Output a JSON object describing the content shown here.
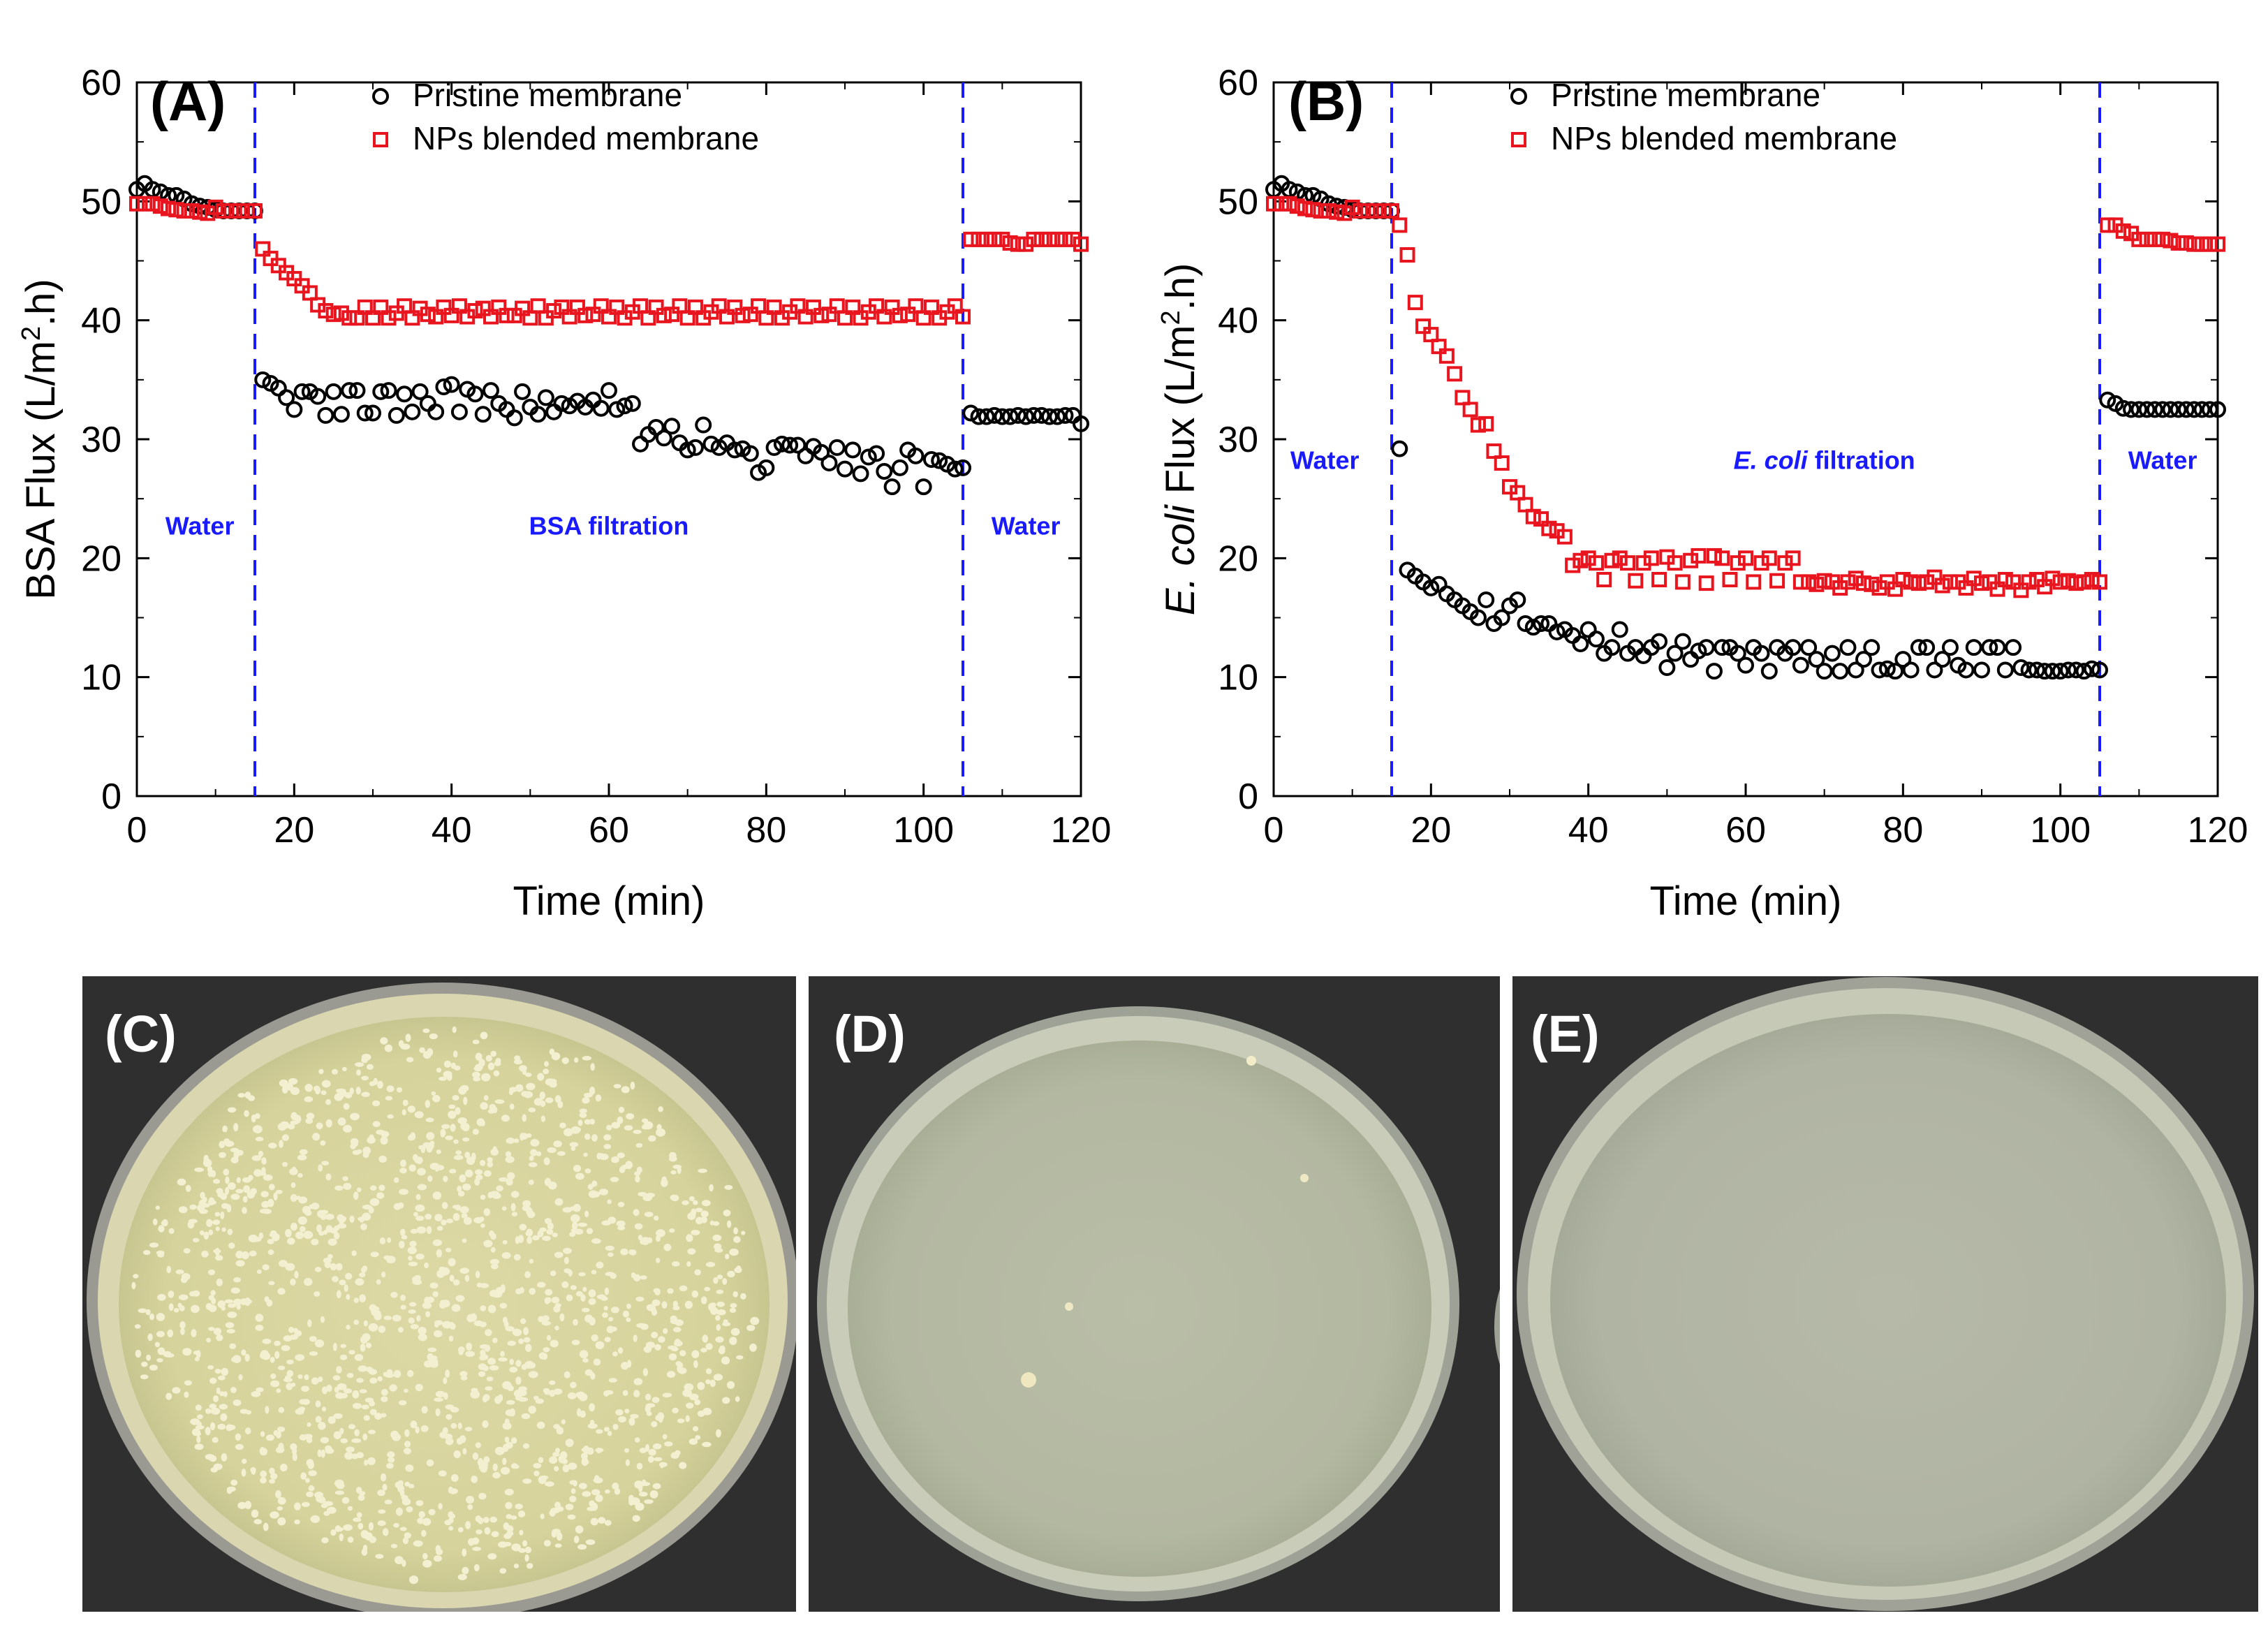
{
  "chart_data": [
    {
      "panel": "(A)",
      "type": "scatter",
      "xlabel": "Time (min)",
      "ylabel_parts": [
        "BSA Flux (L/m",
        "2",
        ".h)"
      ],
      "xlim": [
        0,
        120
      ],
      "ylim": [
        0,
        60
      ],
      "xticks": [
        0,
        20,
        40,
        60,
        80,
        100,
        120
      ],
      "yticks": [
        0,
        10,
        20,
        30,
        40,
        50,
        60
      ],
      "vlines": [
        15,
        105
      ],
      "vline_color": "#1a1aff",
      "regions": [
        {
          "text": "Water",
          "x": 8,
          "y": 22
        },
        {
          "text": "BSA filtration",
          "x": 60,
          "y": 22
        },
        {
          "text": "Water",
          "x": 113,
          "y": 22
        }
      ],
      "legend_position": "top-center",
      "series": [
        {
          "name": "Pristine membrane",
          "marker": "circle",
          "color": "#000000",
          "x": [
            0,
            1,
            2,
            3,
            4,
            5,
            6,
            7,
            8,
            9,
            10,
            11,
            12,
            13,
            14,
            15,
            16,
            17,
            18,
            19,
            20,
            21,
            22,
            23,
            24,
            25,
            26,
            27,
            28,
            29,
            30,
            31,
            32,
            33,
            34,
            35,
            36,
            37,
            38,
            39,
            40,
            41,
            42,
            43,
            44,
            45,
            46,
            47,
            48,
            49,
            50,
            51,
            52,
            53,
            54,
            55,
            56,
            57,
            58,
            59,
            60,
            61,
            62,
            63,
            64,
            65,
            66,
            67,
            68,
            69,
            70,
            71,
            72,
            73,
            74,
            75,
            76,
            77,
            78,
            79,
            80,
            81,
            82,
            83,
            84,
            85,
            86,
            87,
            88,
            89,
            90,
            91,
            92,
            93,
            94,
            95,
            96,
            97,
            98,
            99,
            100,
            101,
            102,
            103,
            104,
            105,
            106,
            107,
            108,
            109,
            110,
            111,
            112,
            113,
            114,
            115,
            116,
            117,
            118,
            119,
            120
          ],
          "y": [
            51.0,
            51.5,
            51.0,
            50.8,
            50.5,
            50.5,
            50.2,
            49.8,
            49.6,
            49.5,
            49.3,
            49.2,
            49.2,
            49.2,
            49.2,
            49.2,
            35.0,
            34.7,
            34.3,
            33.5,
            32.5,
            34.0,
            34.0,
            33.6,
            32.0,
            34.0,
            32.1,
            34.1,
            34.1,
            32.2,
            32.2,
            34.0,
            34.1,
            32.0,
            33.8,
            32.3,
            34.0,
            33.0,
            32.3,
            34.4,
            34.6,
            32.3,
            34.2,
            33.8,
            32.1,
            34.1,
            33.0,
            32.5,
            31.8,
            34.0,
            32.7,
            32.1,
            33.5,
            32.3,
            33.0,
            32.8,
            33.2,
            32.7,
            33.3,
            32.6,
            34.1,
            32.5,
            32.8,
            33.0,
            29.6,
            30.4,
            31.0,
            30.1,
            31.1,
            29.7,
            29.1,
            29.3,
            31.2,
            29.6,
            29.3,
            29.7,
            29.1,
            29.2,
            28.8,
            27.2,
            27.6,
            29.3,
            29.6,
            29.5,
            29.5,
            28.6,
            29.4,
            28.9,
            28.0,
            29.3,
            27.5,
            29.1,
            27.1,
            28.5,
            28.8,
            27.3,
            26.0,
            27.6,
            29.1,
            28.6,
            26.0,
            28.3,
            28.2,
            27.9,
            27.5,
            27.6,
            32.2,
            31.9,
            31.9,
            32.0,
            31.9,
            31.9,
            32.0,
            31.9,
            32.0,
            32.0,
            31.9,
            31.9,
            32.0,
            32.0,
            31.3
          ]
        },
        {
          "name": "NPs blended membrane",
          "marker": "square",
          "color": "#e8141e",
          "x": [
            0,
            1,
            2,
            3,
            4,
            5,
            6,
            7,
            8,
            9,
            10,
            11,
            12,
            13,
            14,
            15,
            16,
            17,
            18,
            19,
            20,
            21,
            22,
            23,
            24,
            25,
            26,
            27,
            28,
            29,
            30,
            31,
            32,
            33,
            34,
            35,
            36,
            37,
            38,
            39,
            40,
            41,
            42,
            43,
            44,
            45,
            46,
            47,
            48,
            49,
            50,
            51,
            52,
            53,
            54,
            55,
            56,
            57,
            58,
            59,
            60,
            61,
            62,
            63,
            64,
            65,
            66,
            67,
            68,
            69,
            70,
            71,
            72,
            73,
            74,
            75,
            76,
            77,
            78,
            79,
            80,
            81,
            82,
            83,
            84,
            85,
            86,
            87,
            88,
            89,
            90,
            91,
            92,
            93,
            94,
            95,
            96,
            97,
            98,
            99,
            100,
            101,
            102,
            103,
            104,
            105,
            106,
            107,
            108,
            109,
            110,
            111,
            112,
            113,
            114,
            115,
            116,
            117,
            118,
            119,
            120
          ],
          "y": [
            49.8,
            49.8,
            49.8,
            49.6,
            49.4,
            49.3,
            49.2,
            49.2,
            49.1,
            49.0,
            49.5,
            49.2,
            49.2,
            49.2,
            49.2,
            49.2,
            46.0,
            45.2,
            44.6,
            44.0,
            43.5,
            42.9,
            42.3,
            41.3,
            40.8,
            40.5,
            40.6,
            40.2,
            40.2,
            41.1,
            40.2,
            41.1,
            40.2,
            40.6,
            41.2,
            40.2,
            41.0,
            40.5,
            40.3,
            41.1,
            40.4,
            41.2,
            40.3,
            40.8,
            41.0,
            40.3,
            41.1,
            40.4,
            40.4,
            41.0,
            40.2,
            41.2,
            40.2,
            40.8,
            41.1,
            40.3,
            41.1,
            40.4,
            40.5,
            41.2,
            40.3,
            41.1,
            40.2,
            40.7,
            41.2,
            40.2,
            41.1,
            40.4,
            40.5,
            41.2,
            40.2,
            41.1,
            40.2,
            40.7,
            41.2,
            40.3,
            41.1,
            40.4,
            40.5,
            41.2,
            40.2,
            41.1,
            40.2,
            40.7,
            41.2,
            40.3,
            41.1,
            40.4,
            40.5,
            41.2,
            40.2,
            41.1,
            40.2,
            40.7,
            41.2,
            40.3,
            41.1,
            40.4,
            40.5,
            41.2,
            40.2,
            41.1,
            40.2,
            40.7,
            41.2,
            40.3,
            46.8,
            46.8,
            46.8,
            46.8,
            46.8,
            46.5,
            46.4,
            46.4,
            46.8,
            46.8,
            46.8,
            46.8,
            46.8,
            46.8,
            46.4
          ]
        }
      ]
    },
    {
      "panel": "(B)",
      "type": "scatter",
      "xlabel": "Time (min)",
      "ylabel_parts": [
        "E. coli",
        " Flux (L/m",
        "2",
        ".h)"
      ],
      "xlim": [
        0,
        120
      ],
      "ylim": [
        0,
        60
      ],
      "xticks": [
        0,
        20,
        40,
        60,
        80,
        100,
        120
      ],
      "yticks": [
        0,
        10,
        20,
        30,
        40,
        50,
        60
      ],
      "vlines": [
        15,
        105
      ],
      "vline_color": "#1a1aff",
      "regions": [
        {
          "text": "Water",
          "x": 6.5,
          "y": 27.5
        },
        {
          "text": "E. coli filtration",
          "x": 70,
          "y": 27.5
        },
        {
          "text": "Water",
          "x": 113,
          "y": 27.5
        }
      ],
      "legend_position": "top-center",
      "series": [
        {
          "name": "Pristine membrane",
          "marker": "circle",
          "color": "#000000",
          "x": [
            0,
            1,
            2,
            3,
            4,
            5,
            6,
            7,
            8,
            9,
            10,
            11,
            12,
            13,
            14,
            15,
            16,
            17,
            18,
            19,
            20,
            21,
            22,
            23,
            24,
            25,
            26,
            27,
            28,
            29,
            30,
            31,
            32,
            33,
            34,
            35,
            36,
            37,
            38,
            39,
            40,
            41,
            42,
            43,
            44,
            45,
            46,
            47,
            48,
            49,
            50,
            51,
            52,
            53,
            54,
            55,
            56,
            57,
            58,
            59,
            60,
            61,
            62,
            63,
            64,
            65,
            66,
            67,
            68,
            69,
            70,
            71,
            72,
            73,
            74,
            75,
            76,
            77,
            78,
            79,
            80,
            81,
            82,
            83,
            84,
            85,
            86,
            87,
            88,
            89,
            90,
            91,
            92,
            93,
            94,
            95,
            96,
            97,
            98,
            99,
            100,
            101,
            102,
            103,
            104,
            105,
            106,
            107,
            108,
            109,
            110,
            111,
            112,
            113,
            114,
            115,
            116,
            117,
            118,
            119,
            120
          ],
          "y": [
            51.0,
            51.5,
            51.0,
            50.8,
            50.5,
            50.5,
            50.2,
            49.8,
            49.6,
            49.5,
            49.3,
            49.2,
            49.2,
            49.2,
            49.2,
            49.2,
            29.2,
            19.0,
            18.5,
            18.0,
            17.5,
            17.8,
            17.0,
            16.5,
            16.0,
            15.5,
            15.0,
            16.5,
            14.5,
            15.0,
            16.0,
            16.5,
            14.5,
            14.2,
            14.5,
            14.5,
            13.8,
            14.0,
            13.5,
            12.8,
            14.0,
            13.2,
            12.0,
            12.5,
            14.0,
            12.0,
            12.5,
            11.8,
            12.5,
            13.0,
            10.8,
            12.0,
            13.0,
            11.5,
            12.2,
            12.5,
            10.5,
            12.5,
            12.5,
            12.0,
            11.0,
            12.5,
            12.0,
            10.5,
            12.5,
            12.0,
            12.5,
            11.0,
            12.5,
            11.5,
            10.5,
            12.0,
            10.5,
            12.5,
            10.6,
            11.5,
            12.5,
            10.6,
            10.7,
            10.5,
            11.5,
            10.6,
            12.5,
            12.5,
            10.6,
            11.5,
            12.5,
            11.0,
            10.6,
            12.5,
            10.6,
            12.5,
            12.5,
            10.6,
            12.5,
            10.8,
            10.6,
            10.6,
            10.5,
            10.5,
            10.5,
            10.6,
            10.6,
            10.5,
            10.7,
            10.6,
            33.3,
            33.0,
            32.6,
            32.5,
            32.5,
            32.5,
            32.5,
            32.5,
            32.5,
            32.5,
            32.5,
            32.5,
            32.5,
            32.5,
            32.5
          ]
        },
        {
          "name": "NPs blended membrane",
          "marker": "square",
          "color": "#e8141e",
          "x": [
            0,
            1,
            2,
            3,
            4,
            5,
            6,
            7,
            8,
            9,
            10,
            11,
            12,
            13,
            14,
            15,
            16,
            17,
            18,
            19,
            20,
            21,
            22,
            23,
            24,
            25,
            26,
            27,
            28,
            29,
            30,
            31,
            32,
            33,
            34,
            35,
            36,
            37,
            38,
            39,
            40,
            41,
            42,
            43,
            44,
            45,
            46,
            47,
            48,
            49,
            50,
            51,
            52,
            53,
            54,
            55,
            56,
            57,
            58,
            59,
            60,
            61,
            62,
            63,
            64,
            65,
            66,
            67,
            68,
            69,
            70,
            71,
            72,
            73,
            74,
            75,
            76,
            77,
            78,
            79,
            80,
            81,
            82,
            83,
            84,
            85,
            86,
            87,
            88,
            89,
            90,
            91,
            92,
            93,
            94,
            95,
            96,
            97,
            98,
            99,
            100,
            101,
            102,
            103,
            104,
            105,
            106,
            107,
            108,
            109,
            110,
            111,
            112,
            113,
            114,
            115,
            116,
            117,
            118,
            119,
            120
          ],
          "y": [
            49.8,
            49.8,
            49.8,
            49.6,
            49.4,
            49.3,
            49.2,
            49.2,
            49.1,
            49.0,
            49.5,
            49.2,
            49.2,
            49.2,
            49.2,
            49.2,
            48.0,
            45.5,
            41.5,
            39.5,
            38.8,
            37.8,
            37.0,
            35.5,
            33.5,
            32.5,
            31.2,
            31.3,
            29.0,
            28.0,
            26.0,
            25.5,
            24.5,
            23.5,
            23.3,
            22.5,
            22.3,
            21.8,
            19.4,
            19.8,
            20.0,
            19.6,
            18.2,
            19.8,
            20.0,
            19.6,
            18.1,
            19.6,
            20.0,
            18.2,
            20.1,
            19.6,
            18.0,
            19.8,
            20.2,
            17.9,
            20.2,
            20.0,
            18.2,
            19.6,
            20.0,
            18.0,
            19.6,
            20.0,
            18.1,
            19.6,
            20.0,
            18.0,
            18.0,
            17.8,
            18.1,
            18.0,
            17.5,
            18.0,
            18.3,
            17.9,
            17.8,
            17.5,
            18.0,
            17.4,
            18.2,
            18.0,
            17.9,
            18.0,
            18.4,
            17.7,
            18.0,
            18.0,
            17.5,
            18.3,
            17.9,
            18.0,
            17.4,
            18.2,
            18.0,
            17.3,
            18.0,
            18.2,
            17.6,
            18.3,
            18.0,
            18.1,
            17.9,
            18.0,
            18.2,
            18.0,
            48.0,
            48.0,
            47.5,
            47.3,
            46.8,
            46.8,
            46.8,
            46.8,
            46.7,
            46.5,
            46.5,
            46.4,
            46.4,
            46.4,
            46.4
          ]
        }
      ]
    }
  ],
  "photos": [
    {
      "label": "(C)",
      "description_colonies": "dense"
    },
    {
      "label": "(D)",
      "description_colonies": "few"
    },
    {
      "label": "(E)",
      "description_colonies": "none"
    }
  ]
}
